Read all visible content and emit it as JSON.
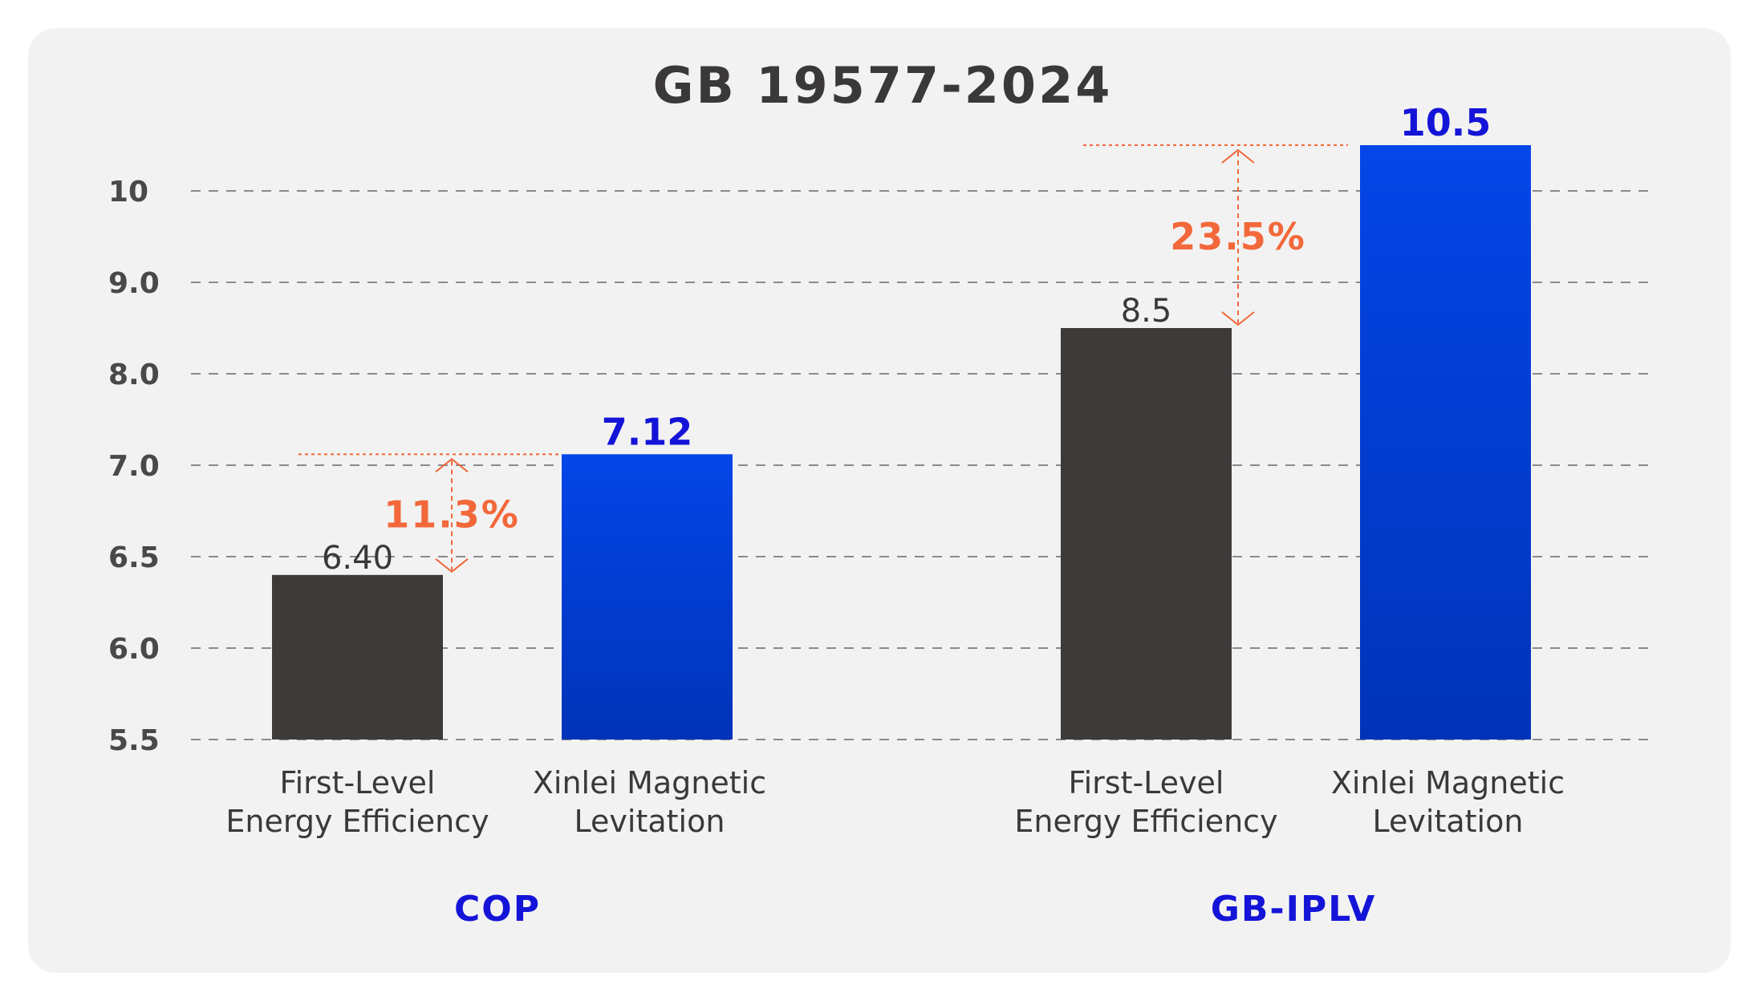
{
  "chart_data": {
    "type": "bar",
    "title": "GB 19577-2024",
    "yticks": [
      "5.5",
      "6.0",
      "6.5",
      "7.0",
      "8.0",
      "9.0",
      "10"
    ],
    "grid": true,
    "colors": {
      "standard": "#3d3a39",
      "xinlei_top": "#0446e8",
      "xinlei_bottom": "#0033b8",
      "highlight": "#f2683a",
      "label_blue": "#1414d8"
    },
    "groups": [
      {
        "name": "COP",
        "categories": [
          "First-Level\nEnergy Efficiency",
          "Xinlei Magnetic\nLevitation"
        ],
        "values": [
          6.4,
          7.12
        ],
        "value_labels": [
          "6.40",
          "7.12"
        ],
        "improvement": "11.3%"
      },
      {
        "name": "GB-IPLV",
        "categories": [
          "First-Level\nEnergy Efficiency",
          "Xinlei Magnetic\nLevitation"
        ],
        "values": [
          8.5,
          10.5
        ],
        "value_labels": [
          "8.5",
          "10.5"
        ],
        "improvement": "23.5%"
      }
    ]
  }
}
